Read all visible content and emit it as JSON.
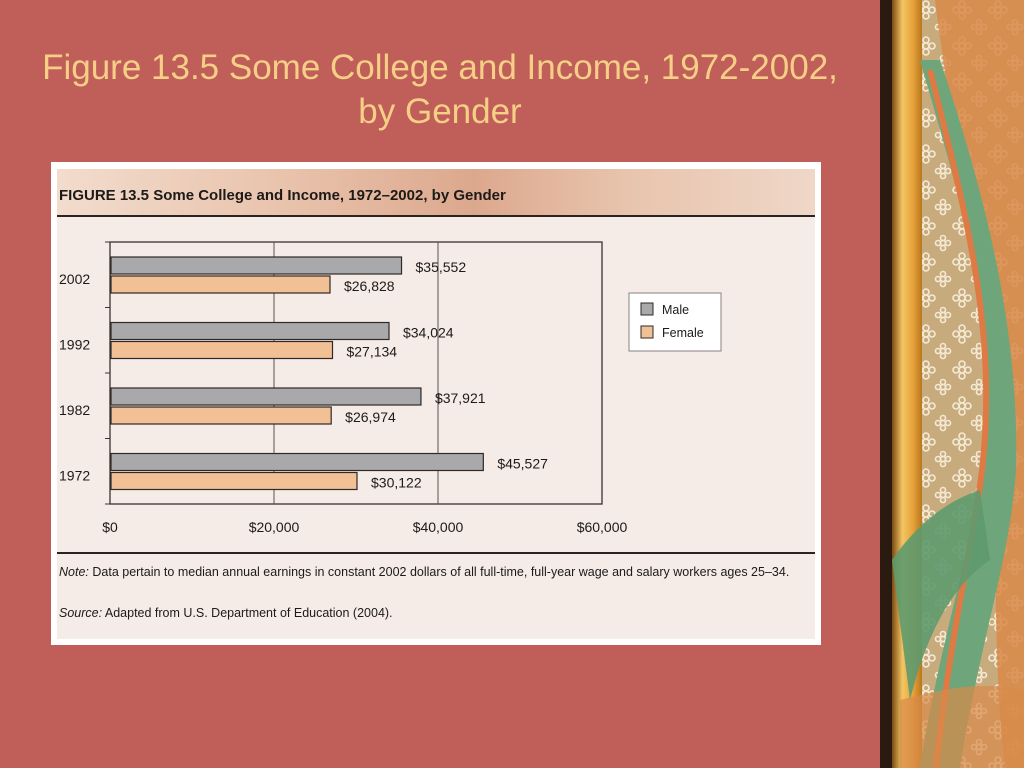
{
  "slide": {
    "title": "Figure 13.5 Some College and Income, 1972-2002, by Gender"
  },
  "figure": {
    "title": "FIGURE 13.5 Some College and Income, 1972–2002, by Gender",
    "note_label": "Note:",
    "note_text": " Data pertain to median annual earnings in constant 2002 dollars of all full-time, full-year wage and salary workers ages 25–34.",
    "source_label": "Source:",
    "source_text": " Adapted from U.S. Department of Education (2004)."
  },
  "colors": {
    "male": "#a9a9ab",
    "female": "#f2c095",
    "slide_bg": "#c05e5a",
    "title": "#f6cf86"
  },
  "chart_data": {
    "type": "bar",
    "orientation": "horizontal",
    "title": "FIGURE 13.5 Some College and Income, 1972–2002, by Gender",
    "categories": [
      "2002",
      "1992",
      "1982",
      "1972"
    ],
    "series": [
      {
        "name": "Male",
        "values": [
          35552,
          34024,
          37921,
          45527
        ],
        "labels": [
          "$35,552",
          "$34,024",
          "$37,921",
          "$45,527"
        ]
      },
      {
        "name": "Female",
        "values": [
          26828,
          27134,
          26974,
          30122
        ],
        "labels": [
          "$26,828",
          "$27,134",
          "$26,974",
          "$30,122"
        ]
      }
    ],
    "xlim": [
      0,
      60000
    ],
    "xticks": [
      0,
      20000,
      40000,
      60000
    ],
    "xtick_labels": [
      "$0",
      "$20,000",
      "$40,000",
      "$60,000"
    ],
    "grid": true,
    "legend": "right"
  }
}
